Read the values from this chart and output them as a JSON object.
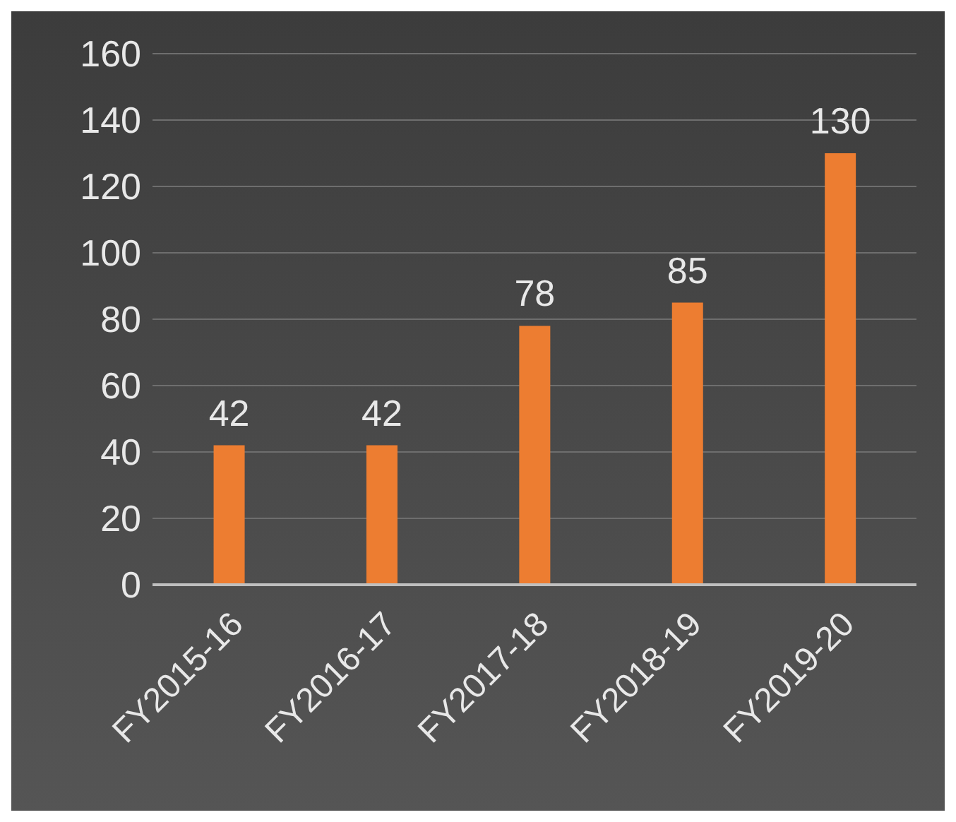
{
  "chart_data": {
    "type": "bar",
    "categories": [
      "FY2015-16",
      "FY2016-17",
      "FY2017-18",
      "FY2018-19",
      "FY2019-20"
    ],
    "values": [
      42,
      42,
      78,
      85,
      130
    ],
    "color": "#ed7d31",
    "ylim": [
      0,
      160
    ],
    "yticks": [
      0,
      20,
      40,
      60,
      80,
      100,
      120,
      140,
      160
    ],
    "grid": "y",
    "data_labels": true
  }
}
